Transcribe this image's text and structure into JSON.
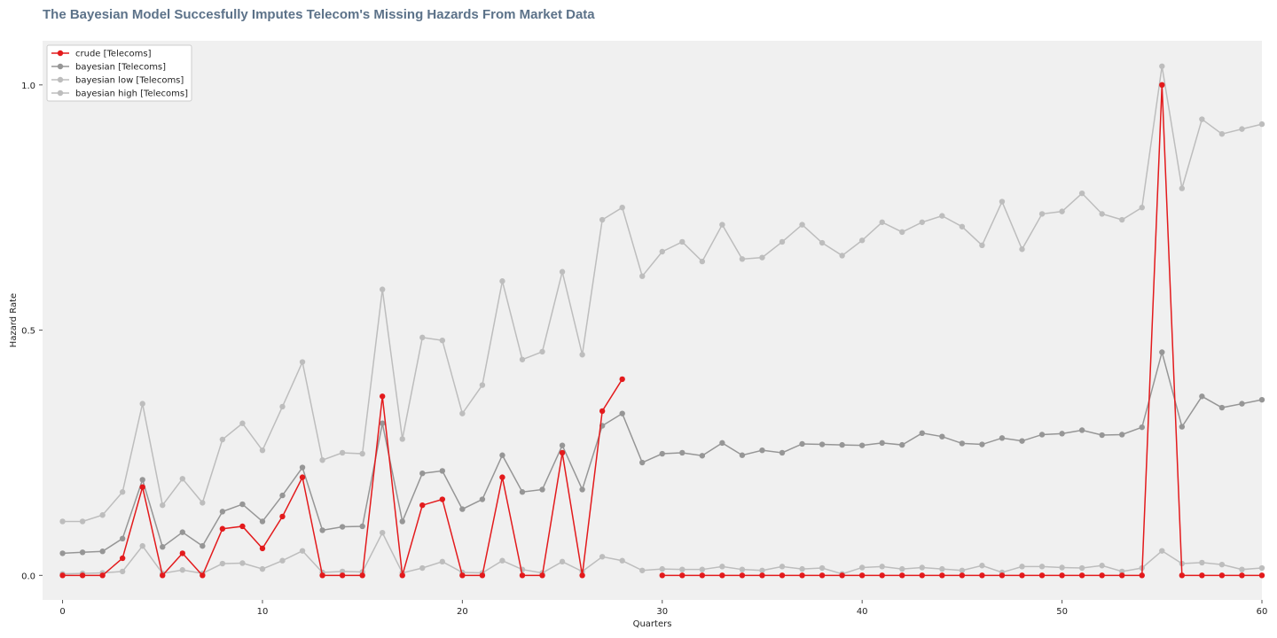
{
  "title": "The Bayesian Model Succesfully Imputes Telecom's Missing Hazards From Market Data",
  "colors": {
    "plot_bg": "#f0f0f0",
    "crude": "#e31a1c",
    "bayesian": "#969696",
    "bayesian_low": "#bdbdbd",
    "bayesian_high": "#bdbdbd"
  },
  "chart_data": {
    "type": "line",
    "xlabel": "Quarters",
    "ylabel": "Hazard Rate",
    "xlim": [
      -1,
      60
    ],
    "ylim": [
      -0.05,
      1.09
    ],
    "x_ticks": [
      0,
      10,
      20,
      30,
      40,
      50,
      60
    ],
    "y_ticks": [
      0.0,
      0.5,
      1.0
    ],
    "y_tick_labels": [
      "0.0",
      "0.5",
      "1.0"
    ],
    "grid": false,
    "legend_position": "top-left",
    "x": [
      0,
      1,
      2,
      3,
      4,
      5,
      6,
      7,
      8,
      9,
      10,
      11,
      12,
      13,
      14,
      15,
      16,
      17,
      18,
      19,
      20,
      21,
      22,
      23,
      24,
      25,
      26,
      27,
      28,
      29,
      30,
      31,
      32,
      33,
      34,
      35,
      36,
      37,
      38,
      39,
      40,
      41,
      42,
      43,
      44,
      45,
      46,
      47,
      48,
      49,
      50,
      51,
      52,
      53,
      54,
      55,
      56,
      57,
      58,
      59,
      60
    ],
    "series": [
      {
        "name": "crude [Telecoms]",
        "color": "#e31a1c",
        "values": [
          0,
          0,
          0,
          0.035,
          0.18,
          0,
          0.045,
          0,
          0.095,
          0.1,
          0.055,
          0.12,
          0.2,
          0,
          0,
          0,
          0.365,
          0,
          0.143,
          0.155,
          0,
          0,
          0.2,
          0,
          0,
          0.25,
          0,
          0.335,
          0.4,
          null,
          0,
          0,
          0,
          0,
          0,
          0,
          0,
          0,
          0,
          0,
          0,
          0,
          0,
          0,
          0,
          0,
          0,
          0,
          0,
          0,
          0,
          0,
          0,
          0,
          0,
          1.0,
          0,
          0,
          0,
          0,
          0
        ]
      },
      {
        "name": "bayesian [Telecoms]",
        "color": "#969696",
        "values": [
          0.045,
          0.047,
          0.049,
          0.075,
          0.195,
          0.058,
          0.088,
          0.06,
          0.13,
          0.145,
          0.11,
          0.163,
          0.22,
          0.092,
          0.099,
          0.1,
          0.31,
          0.11,
          0.208,
          0.213,
          0.135,
          0.155,
          0.245,
          0.17,
          0.175,
          0.265,
          0.175,
          0.305,
          0.33,
          0.23,
          0.248,
          0.25,
          0.244,
          0.27,
          0.245,
          0.255,
          0.25,
          0.268,
          0.267,
          0.266,
          0.265,
          0.27,
          0.266,
          0.29,
          0.283,
          0.269,
          0.267,
          0.28,
          0.274,
          0.287,
          0.289,
          0.296,
          0.286,
          0.287,
          0.302,
          0.455,
          0.303,
          0.365,
          0.342,
          0.35,
          0.358
        ]
      },
      {
        "name": "bayesian low [Telecoms]",
        "color": "#bdbdbd",
        "values": [
          0.003,
          0.004,
          0.005,
          0.008,
          0.06,
          0.004,
          0.011,
          0.004,
          0.024,
          0.025,
          0.013,
          0.03,
          0.05,
          0.006,
          0.008,
          0.007,
          0.087,
          0.005,
          0.015,
          0.028,
          0.006,
          0.005,
          0.03,
          0.012,
          0.005,
          0.028,
          0.008,
          0.038,
          0.03,
          0.01,
          0.013,
          0.012,
          0.012,
          0.018,
          0.012,
          0.01,
          0.018,
          0.013,
          0.015,
          0.003,
          0.016,
          0.018,
          0.013,
          0.016,
          0.013,
          0.01,
          0.02,
          0.006,
          0.018,
          0.018,
          0.016,
          0.015,
          0.02,
          0.008,
          0.015,
          0.05,
          0.024,
          0.026,
          0.022,
          0.012,
          0.015
        ]
      },
      {
        "name": "bayesian high [Telecoms]",
        "color": "#bdbdbd",
        "values": [
          0.11,
          0.11,
          0.123,
          0.17,
          0.35,
          0.143,
          0.197,
          0.148,
          0.277,
          0.31,
          0.255,
          0.344,
          0.435,
          0.235,
          0.25,
          0.248,
          0.583,
          0.278,
          0.485,
          0.479,
          0.33,
          0.388,
          0.6,
          0.44,
          0.456,
          0.619,
          0.45,
          0.725,
          0.75,
          0.61,
          0.66,
          0.68,
          0.64,
          0.715,
          0.645,
          0.648,
          0.68,
          0.715,
          0.678,
          0.652,
          0.683,
          0.72,
          0.7,
          0.72,
          0.733,
          0.711,
          0.673,
          0.762,
          0.665,
          0.737,
          0.742,
          0.779,
          0.737,
          0.725,
          0.75,
          1.038,
          0.789,
          0.93,
          0.9,
          0.91,
          0.92
        ]
      }
    ]
  }
}
